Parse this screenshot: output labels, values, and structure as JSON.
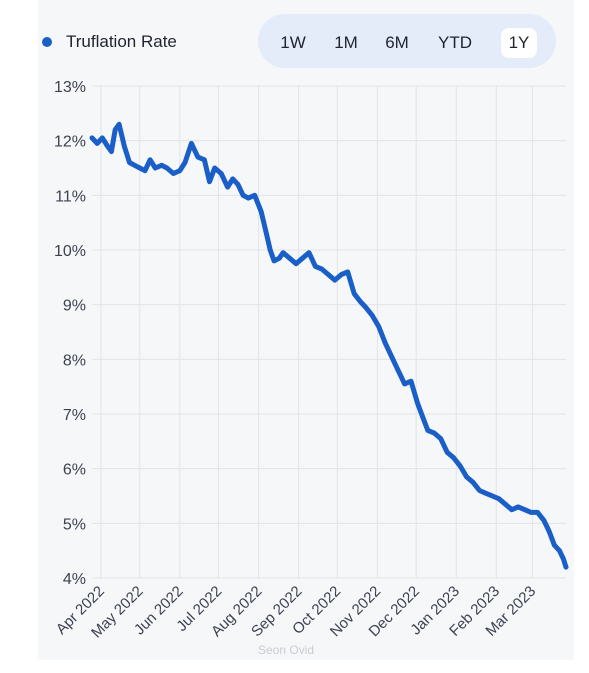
{
  "legend": {
    "label": "Truflation Rate",
    "color": "#1a5fc8"
  },
  "range_buttons": [
    {
      "label": "1W",
      "active": false
    },
    {
      "label": "1M",
      "active": false
    },
    {
      "label": "6M",
      "active": false
    },
    {
      "label": "YTD",
      "active": false
    },
    {
      "label": "1Y",
      "active": true
    }
  ],
  "watermark": "Seon Ovid",
  "chart_data": {
    "type": "line",
    "title": "",
    "xlabel": "",
    "ylabel": "",
    "ylim": [
      4,
      13
    ],
    "yticks": [
      4,
      5,
      6,
      7,
      8,
      9,
      10,
      11,
      12,
      13
    ],
    "ytick_labels": [
      "4%",
      "5%",
      "6%",
      "7%",
      "8%",
      "9%",
      "10%",
      "11%",
      "12%",
      "13%"
    ],
    "xticks": [
      "2022-04-01",
      "2022-05-01",
      "2022-06-01",
      "2022-07-01",
      "2022-08-01",
      "2022-09-01",
      "2022-10-01",
      "2022-11-01",
      "2022-12-01",
      "2023-01-01",
      "2023-02-01",
      "2023-03-01"
    ],
    "xtick_labels": [
      "Apr 2022",
      "May 2022",
      "Jun 2022",
      "Jul 2022",
      "Aug 2022",
      "Sep 2022",
      "Oct 2022",
      "Nov 2022",
      "Dec 2022",
      "Jan 2023",
      "Feb 2023",
      "Mar 2023"
    ],
    "xlim": [
      "2022-03-25",
      "2023-03-27"
    ],
    "grid": true,
    "legend_position": "top-left",
    "series": [
      {
        "name": "Truflation Rate",
        "color": "#1a5fc8",
        "x": [
          "2022-03-25",
          "2022-03-29",
          "2022-04-02",
          "2022-04-06",
          "2022-04-09",
          "2022-04-12",
          "2022-04-15",
          "2022-04-19",
          "2022-04-23",
          "2022-04-27",
          "2022-05-01",
          "2022-05-05",
          "2022-05-09",
          "2022-05-13",
          "2022-05-18",
          "2022-05-22",
          "2022-05-27",
          "2022-06-01",
          "2022-06-05",
          "2022-06-10",
          "2022-06-15",
          "2022-06-20",
          "2022-06-24",
          "2022-06-28",
          "2022-07-03",
          "2022-07-08",
          "2022-07-12",
          "2022-07-16",
          "2022-07-20",
          "2022-07-24",
          "2022-07-29",
          "2022-08-03",
          "2022-08-07",
          "2022-08-10",
          "2022-08-13",
          "2022-08-17",
          "2022-08-20",
          "2022-08-25",
          "2022-08-30",
          "2022-09-04",
          "2022-09-09",
          "2022-09-14",
          "2022-09-19",
          "2022-09-24",
          "2022-09-29",
          "2022-10-04",
          "2022-10-09",
          "2022-10-14",
          "2022-10-19",
          "2022-10-23",
          "2022-10-28",
          "2022-11-02",
          "2022-11-07",
          "2022-11-12",
          "2022-11-17",
          "2022-11-22",
          "2022-11-27",
          "2022-12-02",
          "2022-12-06",
          "2022-12-10",
          "2022-12-15",
          "2022-12-20",
          "2022-12-25",
          "2022-12-30",
          "2023-01-04",
          "2023-01-09",
          "2023-01-14",
          "2023-01-19",
          "2023-01-24",
          "2023-01-29",
          "2023-02-03",
          "2023-02-08",
          "2023-02-13",
          "2023-02-18",
          "2023-02-23",
          "2023-02-28",
          "2023-03-05",
          "2023-03-10",
          "2023-03-14",
          "2023-03-18",
          "2023-03-22",
          "2023-03-25",
          "2023-03-27"
        ],
        "values": [
          12.05,
          11.95,
          12.05,
          11.9,
          11.8,
          12.2,
          12.3,
          11.9,
          11.6,
          11.55,
          11.5,
          11.45,
          11.65,
          11.5,
          11.55,
          11.5,
          11.4,
          11.45,
          11.6,
          11.95,
          11.7,
          11.65,
          11.25,
          11.5,
          11.4,
          11.15,
          11.3,
          11.2,
          11.0,
          10.95,
          11.0,
          10.7,
          10.3,
          10.0,
          9.8,
          9.85,
          9.95,
          9.85,
          9.75,
          9.85,
          9.95,
          9.7,
          9.65,
          9.55,
          9.45,
          9.55,
          9.6,
          9.2,
          9.05,
          8.95,
          8.8,
          8.6,
          8.3,
          8.05,
          7.8,
          7.55,
          7.6,
          7.2,
          6.95,
          6.7,
          6.65,
          6.55,
          6.3,
          6.2,
          6.05,
          5.85,
          5.75,
          5.6,
          5.55,
          5.5,
          5.45,
          5.35,
          5.25,
          5.3,
          5.25,
          5.2,
          5.2,
          5.05,
          4.85,
          4.6,
          4.5,
          4.35,
          4.2
        ]
      }
    ]
  }
}
